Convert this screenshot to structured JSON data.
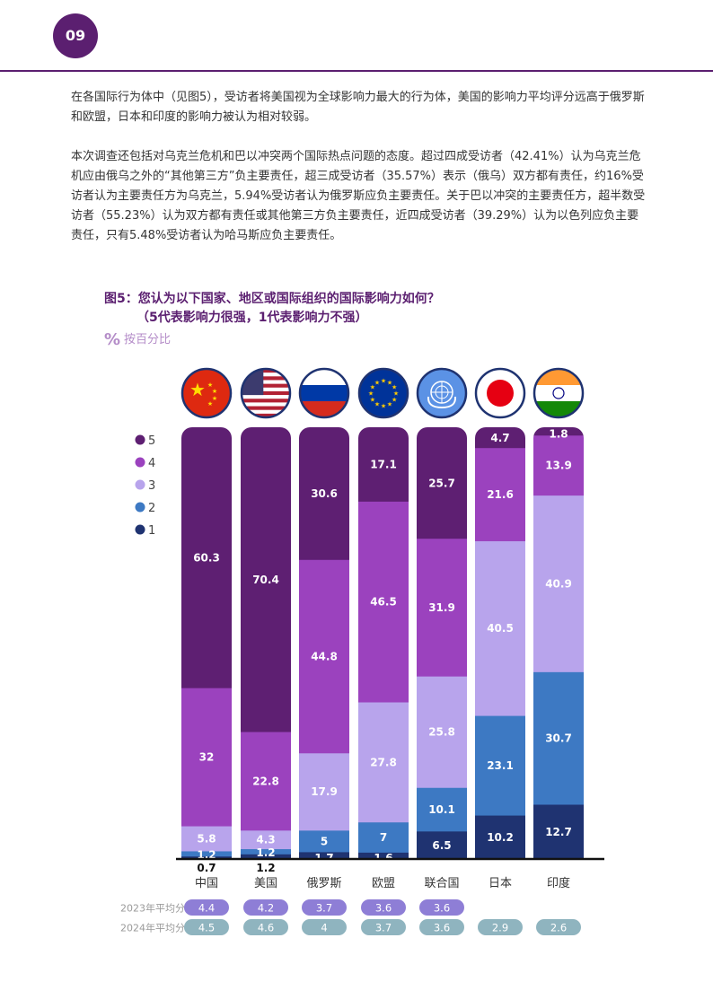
{
  "page": {
    "number": "09"
  },
  "paragraphs": [
    "在各国际行为体中（见图5），受访者将美国视为全球影响力最大的行为体，美国的影响力平均评分远高于俄罗斯和欧盟，日本和印度的影响力被认为相对较弱。",
    "本次调查还包括对乌克兰危机和巴以冲突两个国际热点问题的态度。超过四成受访者（42.41%）认为乌克兰危机应由俄乌之外的“其他第三方”负主要责任，超三成受访者（35.57%）表示（俄乌）双方都有责任，约16%受访者认为主要责任方为乌克兰，5.94%受访者认为俄罗斯应负主要责任。关于巴以冲突的主要责任方，超半数受访者（55.23%）认为双方都有责任或其他第三方负主要责任，近四成受访者（39.29%）认为以色列应负主要责任，只有5.48%受访者认为哈马斯应负主要责任。"
  ],
  "figure": {
    "title": "图5：您认为以下国家、地区或国际组织的国际影响力如何？",
    "subtitle": "（5代表影响力很强，1代表影响力不强）",
    "unit_note": "按百分比",
    "unit_icon": "%"
  },
  "chart_data": {
    "type": "bar",
    "stacked": true,
    "categories": [
      "中国",
      "美国",
      "俄罗斯",
      "欧盟",
      "联合国",
      "日本",
      "印度"
    ],
    "flags": [
      "china-flag",
      "usa-flag",
      "russia-flag",
      "eu-flag",
      "un-flag",
      "japan-flag",
      "india-flag"
    ],
    "legend_position": "left",
    "series": [
      {
        "name": "5",
        "color": "#5e1f72",
        "values": [
          60.3,
          70.4,
          30.6,
          17.1,
          25.7,
          4.7,
          1.8
        ]
      },
      {
        "name": "4",
        "color": "#9b42be",
        "values": [
          32,
          22.8,
          44.8,
          46.5,
          31.9,
          21.6,
          13.9
        ]
      },
      {
        "name": "3",
        "color": "#b8a4ec",
        "values": [
          5.8,
          4.3,
          17.9,
          27.8,
          25.8,
          40.5,
          40.9
        ]
      },
      {
        "name": "2",
        "color": "#3d79c3",
        "values": [
          1.2,
          1.2,
          5,
          7,
          10.1,
          23.1,
          30.7
        ]
      },
      {
        "name": "1",
        "color": "#1f3371",
        "values": [
          0.7,
          1.2,
          1.7,
          1.6,
          6.5,
          10.2,
          12.7
        ]
      }
    ],
    "ylim": [
      0,
      100
    ],
    "averages": [
      {
        "label": "2023年平均分",
        "color": "#8e7ed6",
        "values": [
          "4.4",
          "4.2",
          "3.7",
          "3.6",
          "3.6",
          null,
          null
        ]
      },
      {
        "label": "2024年平均分",
        "color": "#8fb4bf",
        "values": [
          "4.5",
          "4.6",
          "4",
          "3.7",
          "3.6",
          "2.9",
          "2.6"
        ]
      }
    ]
  }
}
